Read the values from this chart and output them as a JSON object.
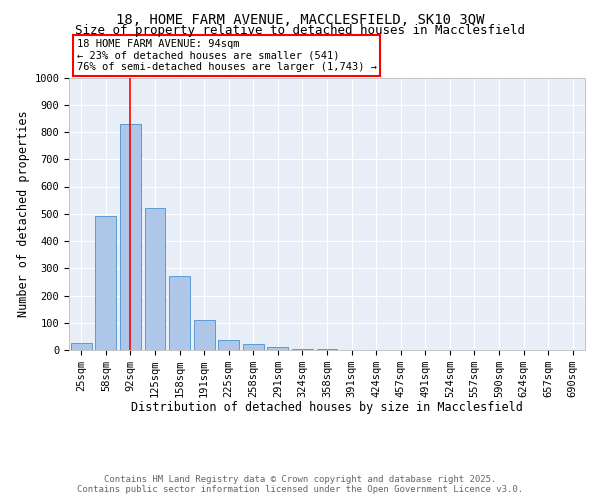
{
  "title_line1": "18, HOME FARM AVENUE, MACCLESFIELD, SK10 3QW",
  "title_line2": "Size of property relative to detached houses in Macclesfield",
  "xlabel": "Distribution of detached houses by size in Macclesfield",
  "ylabel": "Number of detached properties",
  "categories": [
    "25sqm",
    "58sqm",
    "92sqm",
    "125sqm",
    "158sqm",
    "191sqm",
    "225sqm",
    "258sqm",
    "291sqm",
    "324sqm",
    "358sqm",
    "391sqm",
    "424sqm",
    "457sqm",
    "491sqm",
    "524sqm",
    "557sqm",
    "590sqm",
    "624sqm",
    "657sqm",
    "690sqm"
  ],
  "values": [
    25,
    490,
    830,
    520,
    270,
    110,
    37,
    22,
    10,
    5,
    5,
    0,
    0,
    0,
    0,
    0,
    0,
    0,
    0,
    0,
    0
  ],
  "bar_color": "#aec6e8",
  "bar_edge_color": "#5b9bd5",
  "vline_x_index": 2,
  "vline_color": "red",
  "annotation_line1": "18 HOME FARM AVENUE: 94sqm",
  "annotation_line2": "← 23% of detached houses are smaller (541)",
  "annotation_line3": "76% of semi-detached houses are larger (1,743) →",
  "annotation_box_color": "red",
  "ylim": [
    0,
    1000
  ],
  "yticks": [
    0,
    100,
    200,
    300,
    400,
    500,
    600,
    700,
    800,
    900,
    1000
  ],
  "footer_line1": "Contains HM Land Registry data © Crown copyright and database right 2025.",
  "footer_line2": "Contains public sector information licensed under the Open Government Licence v3.0.",
  "bg_color": "#e8eef8",
  "title_fontsize": 10,
  "subtitle_fontsize": 9,
  "axis_label_fontsize": 8.5,
  "tick_fontsize": 7.5,
  "annotation_fontsize": 7.5,
  "footer_fontsize": 6.5
}
